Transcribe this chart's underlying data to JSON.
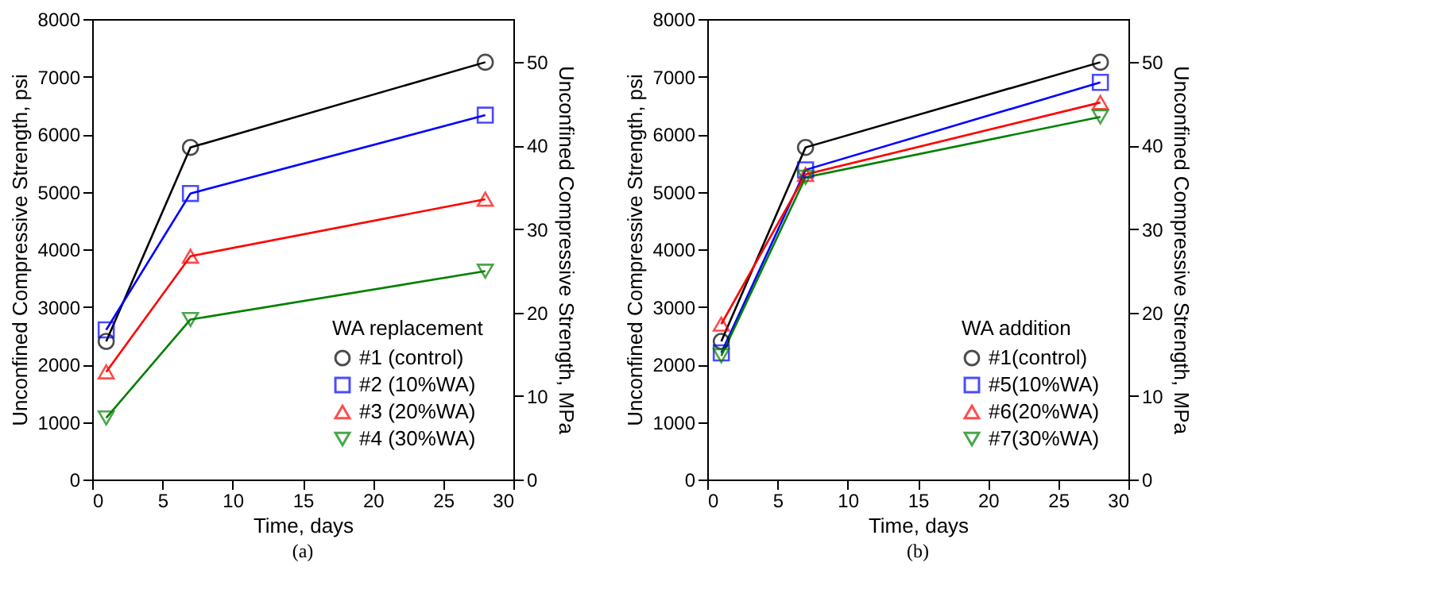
{
  "chart_data": [
    {
      "type": "line",
      "xlabel": "Time, days",
      "ylabel": "Unconfined Compressive Strength, psi",
      "y2label": "Unconfined Compressive Strength, MPa",
      "legend_title": "WA replacement",
      "legend": "bottom right",
      "grid": false,
      "annotations": [
        "(a)"
      ],
      "x": [
        1,
        7,
        28
      ],
      "xlim": [
        0,
        30
      ],
      "xticks": [
        0,
        5,
        10,
        15,
        20,
        25,
        30
      ],
      "ylim": [
        0,
        8000
      ],
      "yticks": [
        0,
        1000,
        2000,
        3000,
        4000,
        5000,
        6000,
        7000,
        8000
      ],
      "y2lim": [
        0,
        55.16
      ],
      "y2ticks": [
        0,
        10,
        20,
        30,
        40,
        50
      ],
      "series": [
        {
          "name": "#1 (control)",
          "color": "#000000",
          "marker": "circle",
          "values": [
            2400,
            5770,
            7250
          ]
        },
        {
          "name": "#2 (10%WA)",
          "color": "#0000ff",
          "marker": "square",
          "values": [
            2600,
            4970,
            6330
          ]
        },
        {
          "name": "#3 (20%WA)",
          "color": "#ff0000",
          "marker": "triangle",
          "values": [
            1870,
            3880,
            4870
          ]
        },
        {
          "name": "#4 (30%WA)",
          "color": "#008000",
          "marker": "triangle-down",
          "values": [
            1070,
            2780,
            3620
          ]
        }
      ]
    },
    {
      "type": "line",
      "xlabel": "Time, days",
      "ylabel": "Unconfined Compressive Strength, psi",
      "y2label": "Unconfined Compressive Strength, MPa",
      "legend_title": "WA addition",
      "legend": "bottom right",
      "grid": false,
      "annotations": [
        "(b)"
      ],
      "x": [
        1,
        7,
        28
      ],
      "xlim": [
        0,
        30
      ],
      "xticks": [
        0,
        5,
        10,
        15,
        20,
        25,
        30
      ],
      "ylim": [
        0,
        8000
      ],
      "yticks": [
        0,
        1000,
        2000,
        3000,
        4000,
        5000,
        6000,
        7000,
        8000
      ],
      "y2lim": [
        0,
        55.16
      ],
      "y2ticks": [
        0,
        10,
        20,
        30,
        40,
        50
      ],
      "series": [
        {
          "name": "#1(control)",
          "color": "#000000",
          "marker": "circle",
          "values": [
            2400,
            5770,
            7250
          ]
        },
        {
          "name": "#5(10%WA)",
          "color": "#0000ff",
          "marker": "square",
          "values": [
            2200,
            5380,
            6900
          ]
        },
        {
          "name": "#6(20%WA)",
          "color": "#ff0000",
          "marker": "triangle",
          "values": [
            2700,
            5300,
            6550
          ]
        },
        {
          "name": "#7(30%WA)",
          "color": "#008000",
          "marker": "triangle-down",
          "values": [
            2150,
            5250,
            6300
          ]
        }
      ]
    }
  ]
}
